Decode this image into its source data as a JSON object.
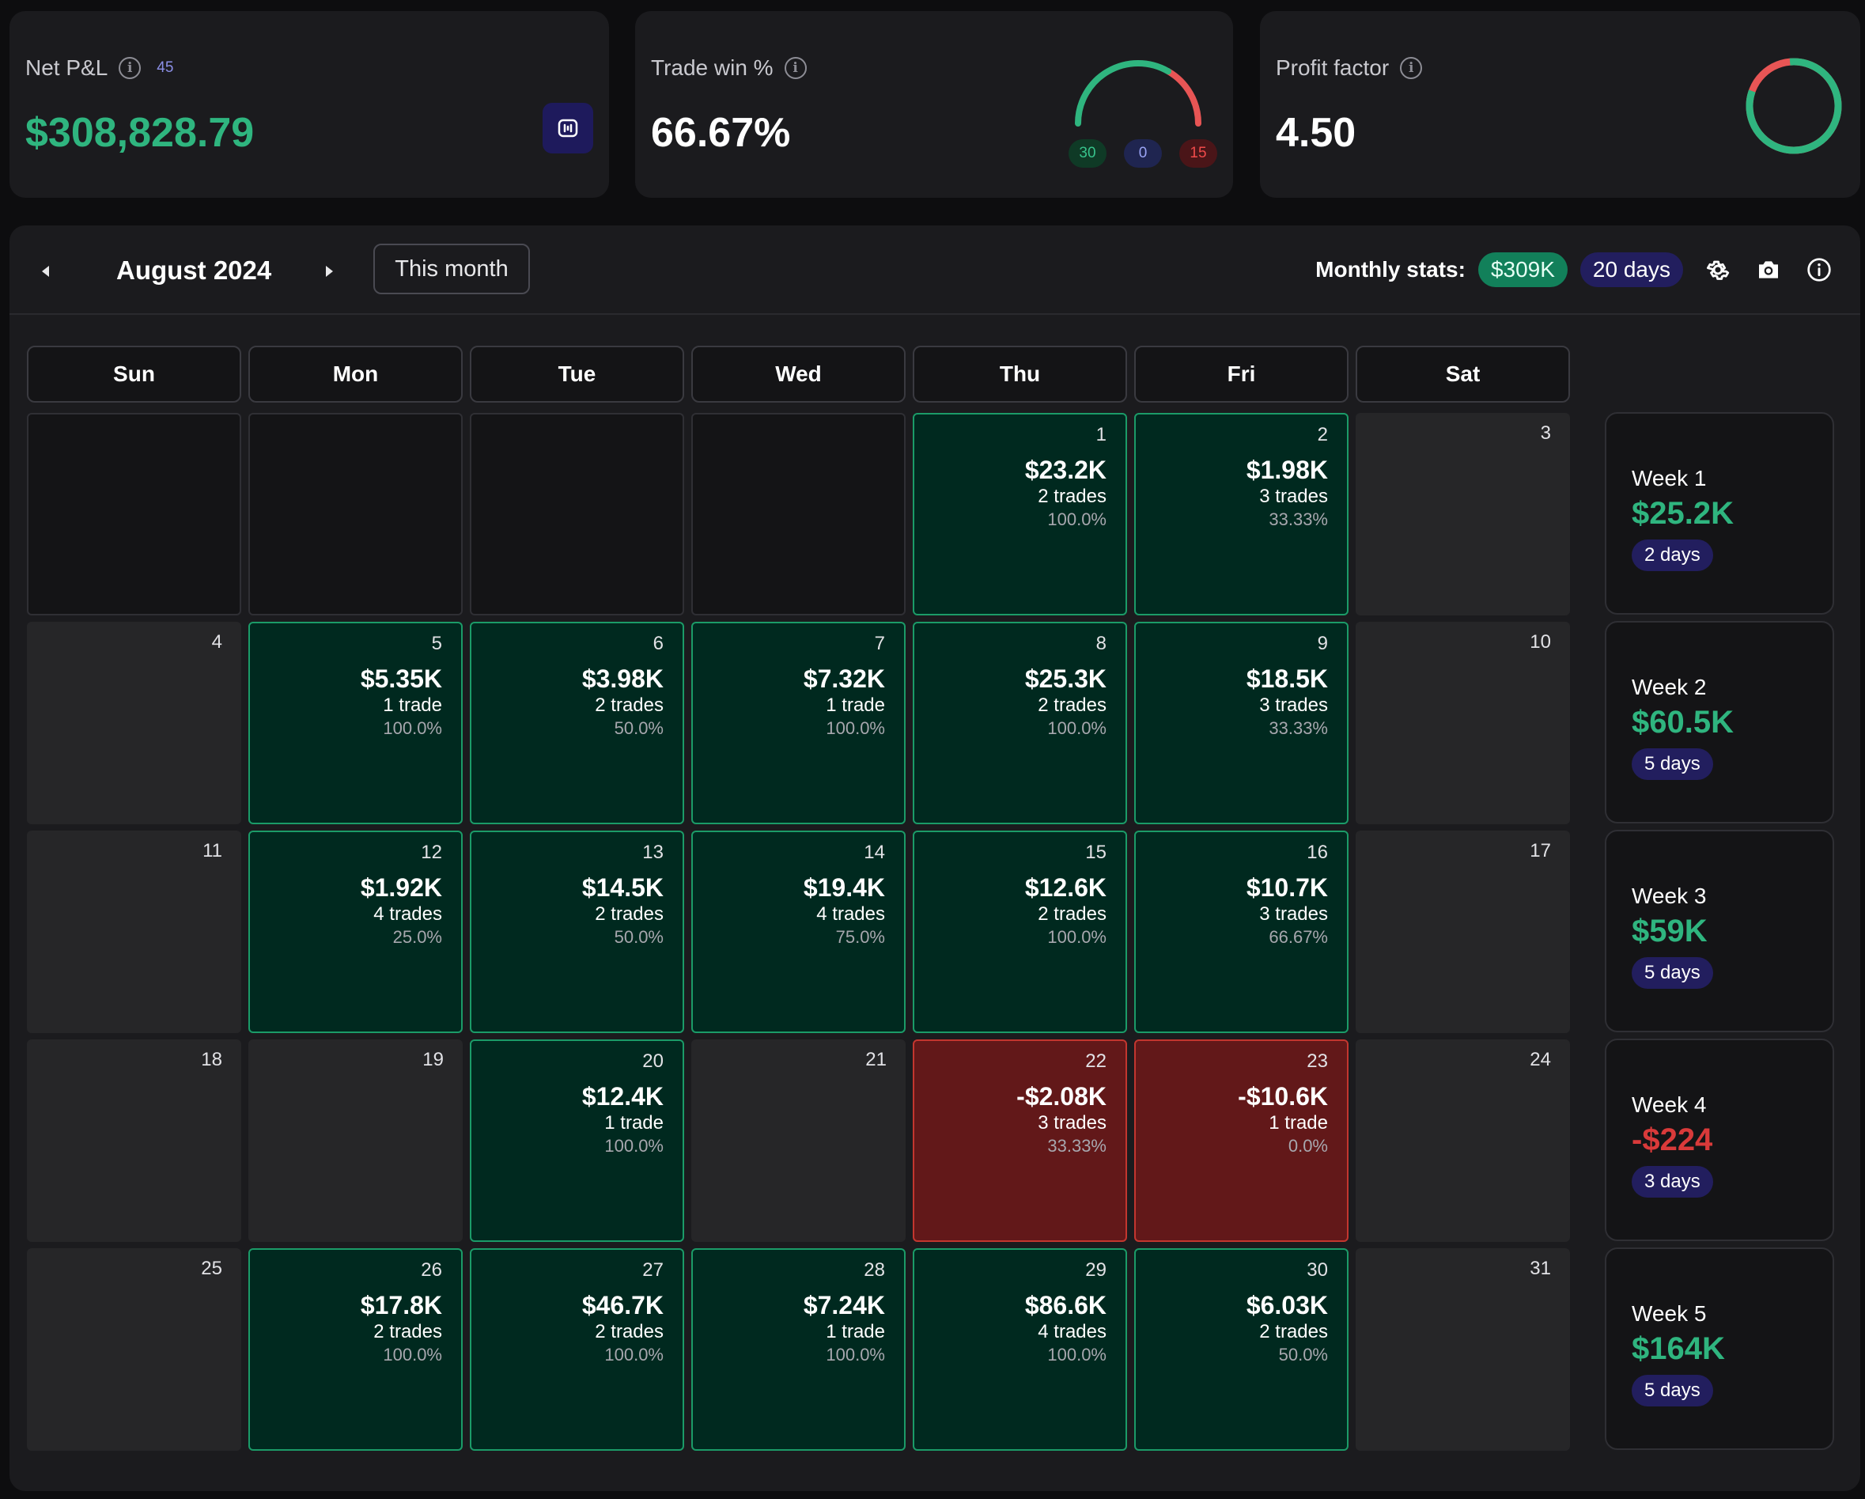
{
  "stats": {
    "net_pnl": {
      "title": "Net P&L",
      "count": "45",
      "value": "$308,828.79"
    },
    "trade_win": {
      "title": "Trade win %",
      "value": "66.67%",
      "wins": "30",
      "breakeven": "0",
      "losses": "15",
      "win_fraction": 0.6667
    },
    "profit_factor": {
      "title": "Profit factor",
      "value": "4.50",
      "profit_share": 0.818
    }
  },
  "calendar": {
    "month_label": "August 2024",
    "this_month_label": "This month",
    "monthly_stats_label": "Monthly stats:",
    "monthly_pnl": "$309K",
    "monthly_days": "20 days",
    "weekdays": [
      "Sun",
      "Mon",
      "Tue",
      "Wed",
      "Thu",
      "Fri",
      "Sat"
    ],
    "weeks": [
      [
        {
          "day": ""
        },
        {
          "day": ""
        },
        {
          "day": ""
        },
        {
          "day": ""
        },
        {
          "day": "1",
          "pnl": "$23.2K",
          "trades": "2 trades",
          "winrate": "100.0%",
          "status": "win"
        },
        {
          "day": "2",
          "pnl": "$1.98K",
          "trades": "3 trades",
          "winrate": "33.33%",
          "status": "win"
        },
        {
          "day": "3"
        }
      ],
      [
        {
          "day": "4"
        },
        {
          "day": "5",
          "pnl": "$5.35K",
          "trades": "1 trade",
          "winrate": "100.0%",
          "status": "win"
        },
        {
          "day": "6",
          "pnl": "$3.98K",
          "trades": "2 trades",
          "winrate": "50.0%",
          "status": "win"
        },
        {
          "day": "7",
          "pnl": "$7.32K",
          "trades": "1 trade",
          "winrate": "100.0%",
          "status": "win"
        },
        {
          "day": "8",
          "pnl": "$25.3K",
          "trades": "2 trades",
          "winrate": "100.0%",
          "status": "win"
        },
        {
          "day": "9",
          "pnl": "$18.5K",
          "trades": "3 trades",
          "winrate": "33.33%",
          "status": "win"
        },
        {
          "day": "10"
        }
      ],
      [
        {
          "day": "11"
        },
        {
          "day": "12",
          "pnl": "$1.92K",
          "trades": "4 trades",
          "winrate": "25.0%",
          "status": "win"
        },
        {
          "day": "13",
          "pnl": "$14.5K",
          "trades": "2 trades",
          "winrate": "50.0%",
          "status": "win"
        },
        {
          "day": "14",
          "pnl": "$19.4K",
          "trades": "4 trades",
          "winrate": "75.0%",
          "status": "win"
        },
        {
          "day": "15",
          "pnl": "$12.6K",
          "trades": "2 trades",
          "winrate": "100.0%",
          "status": "win"
        },
        {
          "day": "16",
          "pnl": "$10.7K",
          "trades": "3 trades",
          "winrate": "66.67%",
          "status": "win"
        },
        {
          "day": "17"
        }
      ],
      [
        {
          "day": "18"
        },
        {
          "day": "19"
        },
        {
          "day": "20",
          "pnl": "$12.4K",
          "trades": "1 trade",
          "winrate": "100.0%",
          "status": "win"
        },
        {
          "day": "21"
        },
        {
          "day": "22",
          "pnl": "-$2.08K",
          "trades": "3 trades",
          "winrate": "33.33%",
          "status": "loss"
        },
        {
          "day": "23",
          "pnl": "-$10.6K",
          "trades": "1 trade",
          "winrate": "0.0%",
          "status": "loss"
        },
        {
          "day": "24"
        }
      ],
      [
        {
          "day": "25"
        },
        {
          "day": "26",
          "pnl": "$17.8K",
          "trades": "2 trades",
          "winrate": "100.0%",
          "status": "win"
        },
        {
          "day": "27",
          "pnl": "$46.7K",
          "trades": "2 trades",
          "winrate": "100.0%",
          "status": "win"
        },
        {
          "day": "28",
          "pnl": "$7.24K",
          "trades": "1 trade",
          "winrate": "100.0%",
          "status": "win"
        },
        {
          "day": "29",
          "pnl": "$86.6K",
          "trades": "4 trades",
          "winrate": "100.0%",
          "status": "win"
        },
        {
          "day": "30",
          "pnl": "$6.03K",
          "trades": "2 trades",
          "winrate": "50.0%",
          "status": "win"
        },
        {
          "day": "31"
        }
      ]
    ],
    "week_summaries": [
      {
        "label": "Week 1",
        "value": "$25.2K",
        "days": "2 days",
        "status": "win"
      },
      {
        "label": "Week 2",
        "value": "$60.5K",
        "days": "5 days",
        "status": "win"
      },
      {
        "label": "Week 3",
        "value": "$59K",
        "days": "5 days",
        "status": "win"
      },
      {
        "label": "Week 4",
        "value": "-$224",
        "days": "3 days",
        "status": "loss"
      },
      {
        "label": "Week 5",
        "value": "$164K",
        "days": "5 days",
        "status": "win"
      }
    ]
  },
  "icons": {
    "info": "info-icon",
    "chart_toggle": "chart-icon",
    "prev": "chevron-left-icon",
    "next": "chevron-right-icon",
    "settings": "gear-icon",
    "camera": "camera-icon",
    "about": "info-icon"
  },
  "colors": {
    "win": "#2fb57f",
    "loss": "#d93a3a",
    "accent_purple": "#221e5e"
  }
}
